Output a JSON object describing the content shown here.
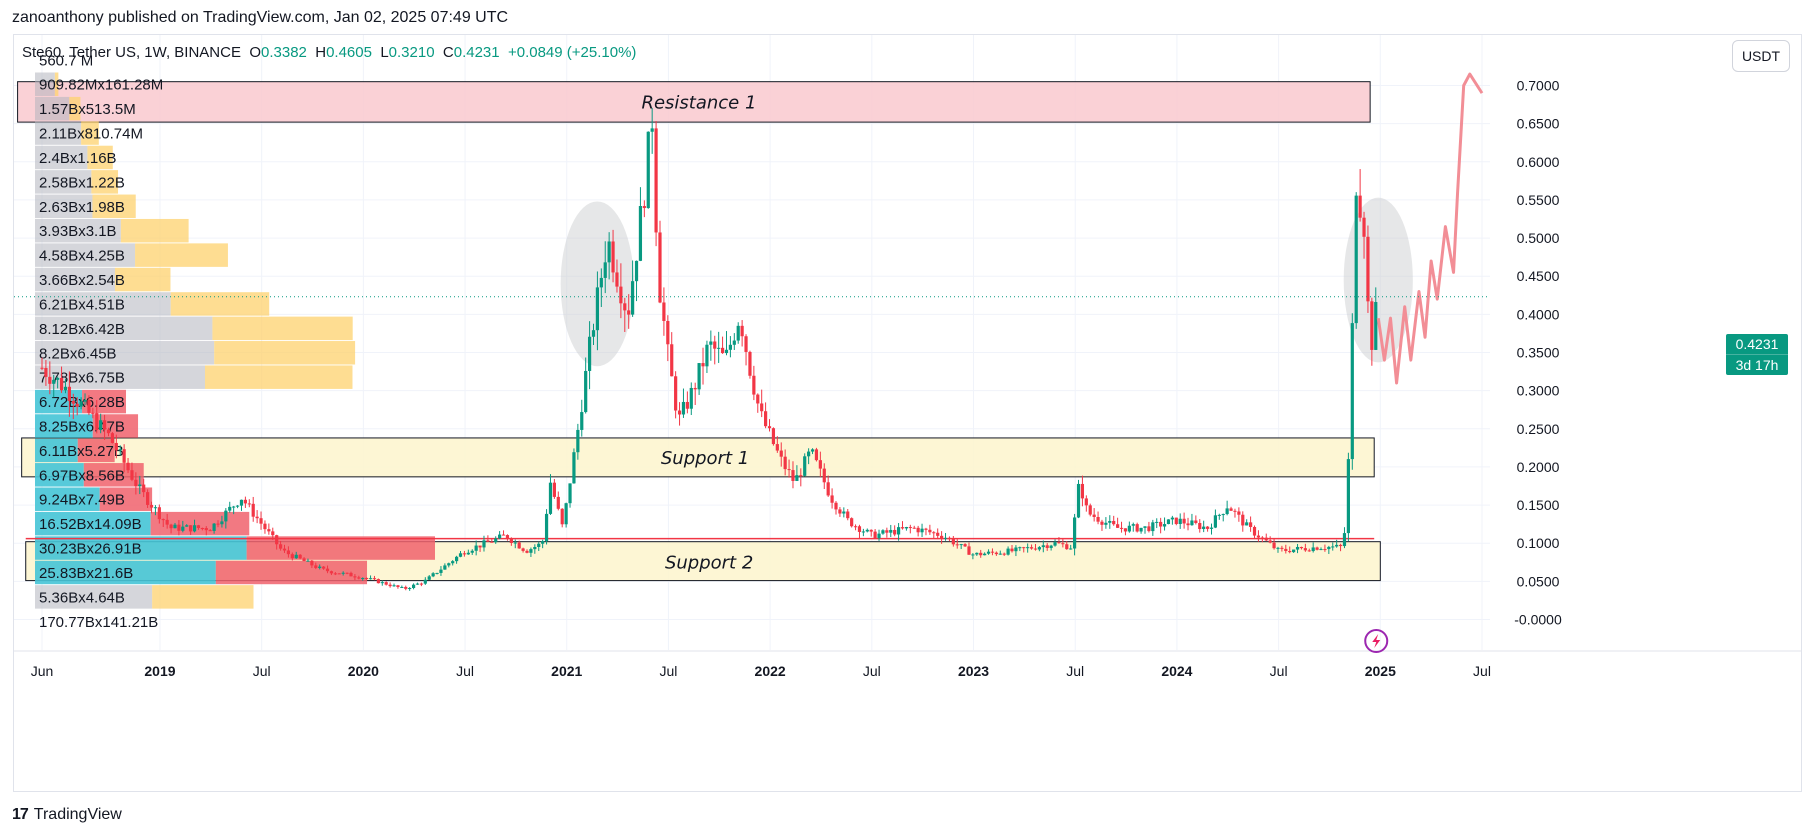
{
  "header": {
    "credit": "zanoanthony published on TradingView.com, Jan 02, 2025 07:49 UTC",
    "symbol_prefix": "Ste",
    "symbol_rest": "Ste60. Tether US, 1W, BINANCE",
    "o_label": "O",
    "o_value": "0.3382",
    "h_label": "H",
    "h_value": "0.4605",
    "l_label": "L",
    "l_value": "0.3210",
    "c_label": "C",
    "c_value": "0.4231",
    "change": "+0.0849 (+25.10%)"
  },
  "currency_button": "USDT",
  "last_price": {
    "value": "0.4231",
    "countdown": "3d 17h"
  },
  "footer": {
    "brand": "TradingView",
    "logo": "17"
  },
  "colors": {
    "up": "#089981",
    "down": "#f23645",
    "grid": "#f0f3fa",
    "resistance_fill": "#f9c9cf",
    "support_fill": "#fdf5cc",
    "vp_gray": "#b2b5be",
    "vp_yellow": "#fdd26e",
    "vp_cyan": "#45c4d6",
    "vp_red": "#f0616c",
    "projection": "#f28e96"
  },
  "icons": {
    "lightning": "lightning-icon"
  },
  "chart_data": {
    "type": "candlestick",
    "title": "Ste60 / Tether US, 1W, BINANCE",
    "ylabel": "USDT",
    "ylim": [
      -0.025,
      0.735
    ],
    "y_ticks": [
      "0.7000",
      "0.6500",
      "0.6000",
      "0.5500",
      "0.5000",
      "0.4500",
      "0.4000",
      "0.3500",
      "0.3000",
      "0.2500",
      "0.2000",
      "0.1500",
      "0.1000",
      "0.0500",
      "-0.0000"
    ],
    "x_ticks": [
      "Jun",
      "2019",
      "Jul",
      "2020",
      "Jul",
      "2021",
      "Jul",
      "2022",
      "Jul",
      "2023",
      "Jul",
      "2024",
      "Jul",
      "2025",
      "Jul"
    ],
    "x_tick_years": [
      2018.42,
      2019.0,
      2019.5,
      2020.0,
      2020.5,
      2021.0,
      2021.5,
      2022.0,
      2022.5,
      2023.0,
      2023.5,
      2024.0,
      2024.5,
      2025.0,
      2025.5
    ],
    "x_range": [
      2018.38,
      2025.55
    ],
    "zones": [
      {
        "name": "Resistance 1",
        "y_low": 0.652,
        "y_high": 0.705,
        "x_start": 2018.3,
        "x_end": 2024.95
      },
      {
        "name": "Support 1",
        "y_low": 0.187,
        "y_high": 0.238,
        "x_start": 2018.32,
        "x_end": 2024.97
      },
      {
        "name": "Support 2",
        "y_low": 0.051,
        "y_high": 0.102,
        "x_start": 2018.34,
        "x_end": 2025.0
      }
    ],
    "horizontal_line": {
      "y": 0.106,
      "x_start": 2018.34,
      "x_end": 2024.97
    },
    "highlight_ellipses": [
      {
        "center_x": 2021.15,
        "center_y": 0.44,
        "rx_years": 0.18,
        "ry": 0.108
      },
      {
        "center_x": 2024.99,
        "center_y": 0.445,
        "rx_years": 0.17,
        "ry": 0.108
      }
    ],
    "projection_path": [
      [
        2024.99,
        0.395
      ],
      [
        2025.02,
        0.34
      ],
      [
        2025.05,
        0.395
      ],
      [
        2025.08,
        0.31
      ],
      [
        2025.12,
        0.41
      ],
      [
        2025.15,
        0.34
      ],
      [
        2025.19,
        0.43
      ],
      [
        2025.22,
        0.37
      ],
      [
        2025.25,
        0.47
      ],
      [
        2025.28,
        0.42
      ],
      [
        2025.32,
        0.515
      ],
      [
        2025.36,
        0.455
      ],
      [
        2025.38,
        0.56
      ],
      [
        2025.41,
        0.7
      ],
      [
        2025.44,
        0.715
      ],
      [
        2025.5,
        0.69
      ]
    ],
    "weekly_close_keypoints": [
      [
        2018.42,
        0.33
      ],
      [
        2018.55,
        0.3
      ],
      [
        2018.75,
        0.24
      ],
      [
        2018.9,
        0.17
      ],
      [
        2019.05,
        0.12
      ],
      [
        2019.25,
        0.12
      ],
      [
        2019.4,
        0.16
      ],
      [
        2019.6,
        0.09
      ],
      [
        2019.8,
        0.065
      ],
      [
        2020.0,
        0.055
      ],
      [
        2020.2,
        0.04
      ],
      [
        2020.3,
        0.05
      ],
      [
        2020.5,
        0.09
      ],
      [
        2020.7,
        0.11
      ],
      [
        2020.8,
        0.09
      ],
      [
        2020.88,
        0.1
      ],
      [
        2020.92,
        0.18
      ],
      [
        2020.98,
        0.12
      ],
      [
        2021.05,
        0.24
      ],
      [
        2021.12,
        0.37
      ],
      [
        2021.2,
        0.5
      ],
      [
        2021.3,
        0.4
      ],
      [
        2021.38,
        0.56
      ],
      [
        2021.42,
        0.66
      ],
      [
        2021.45,
        0.45
      ],
      [
        2021.5,
        0.34
      ],
      [
        2021.55,
        0.26
      ],
      [
        2021.62,
        0.3
      ],
      [
        2021.7,
        0.36
      ],
      [
        2021.78,
        0.34
      ],
      [
        2021.85,
        0.4
      ],
      [
        2021.9,
        0.33
      ],
      [
        2021.95,
        0.27
      ],
      [
        2022.05,
        0.21
      ],
      [
        2022.12,
        0.18
      ],
      [
        2022.2,
        0.22
      ],
      [
        2022.3,
        0.16
      ],
      [
        2022.38,
        0.13
      ],
      [
        2022.5,
        0.11
      ],
      [
        2022.7,
        0.12
      ],
      [
        2022.85,
        0.11
      ],
      [
        2023.0,
        0.085
      ],
      [
        2023.2,
        0.09
      ],
      [
        2023.4,
        0.1
      ],
      [
        2023.48,
        0.095
      ],
      [
        2023.52,
        0.18
      ],
      [
        2023.56,
        0.14
      ],
      [
        2023.7,
        0.12
      ],
      [
        2023.85,
        0.12
      ],
      [
        2024.0,
        0.13
      ],
      [
        2024.15,
        0.12
      ],
      [
        2024.25,
        0.15
      ],
      [
        2024.35,
        0.12
      ],
      [
        2024.5,
        0.09
      ],
      [
        2024.7,
        0.095
      ],
      [
        2024.82,
        0.095
      ],
      [
        2024.85,
        0.24
      ],
      [
        2024.88,
        0.58
      ],
      [
        2024.92,
        0.52
      ],
      [
        2024.95,
        0.35
      ],
      [
        2024.99,
        0.4231
      ]
    ],
    "volume_profile": [
      {
        "price": 0.733,
        "label_a": "560.7",
        "label_b": "M",
        "gray": 0.0,
        "yellow": 0.0,
        "cyan": 0.0,
        "red": 0.0
      },
      {
        "price": 0.701,
        "label_a": "909.82",
        "label_b": "M",
        "label_c": "161.28",
        "label_d": "M",
        "gray": 0.909,
        "yellow": 0.161,
        "cyan": 0.0,
        "red": 0.0
      },
      {
        "price": 0.669,
        "label_a": "1.57",
        "label_b": "B",
        "label_c": "513.5",
        "label_d": "M",
        "gray": 1.57,
        "yellow": 0.51,
        "cyan": 0.0,
        "red": 0.0
      },
      {
        "price": 0.637,
        "label_a": "2.11",
        "label_b": "B",
        "label_c": "810.74",
        "label_d": "M",
        "gray": 2.11,
        "yellow": 0.81,
        "cyan": 0.0,
        "red": 0.0
      },
      {
        "price": 0.605,
        "label_a": "2.4",
        "label_b": "B",
        "label_c": "1.16",
        "label_d": "B",
        "gray": 2.4,
        "yellow": 1.16,
        "cyan": 0.0,
        "red": 0.0
      },
      {
        "price": 0.573,
        "label_a": "2.58",
        "label_b": "B",
        "label_c": "1.22",
        "label_d": "B",
        "gray": 2.58,
        "yellow": 1.22,
        "cyan": 0.0,
        "red": 0.0
      },
      {
        "price": 0.541,
        "label_a": "2.63",
        "label_b": "B",
        "label_c": "1.98",
        "label_d": "B",
        "gray": 2.63,
        "yellow": 1.98,
        "cyan": 0.0,
        "red": 0.0
      },
      {
        "price": 0.509,
        "label_a": "3.93",
        "label_b": "B",
        "label_c": "3.1",
        "label_d": "B",
        "gray": 3.93,
        "yellow": 3.1,
        "cyan": 0.0,
        "red": 0.0
      },
      {
        "price": 0.477,
        "label_a": "4.58",
        "label_b": "B",
        "label_c": "4.25",
        "label_d": "B",
        "gray": 4.58,
        "yellow": 4.25,
        "cyan": 0.0,
        "red": 0.0
      },
      {
        "price": 0.445,
        "label_a": "3.66",
        "label_b": "B",
        "label_c": "2.54",
        "label_d": "B",
        "gray": 3.66,
        "yellow": 2.54,
        "cyan": 0.0,
        "red": 0.0
      },
      {
        "price": 0.413,
        "label_a": "6.21",
        "label_b": "B",
        "label_c": "4.51",
        "label_d": "B",
        "gray": 6.21,
        "yellow": 4.51,
        "cyan": 0.0,
        "red": 0.0
      },
      {
        "price": 0.381,
        "label_a": "8.12",
        "label_b": "B",
        "label_c": "6.42",
        "label_d": "B",
        "gray": 8.12,
        "yellow": 6.42,
        "cyan": 0.0,
        "red": 0.0
      },
      {
        "price": 0.349,
        "label_a": "8.2",
        "label_b": "B",
        "label_c": "6.45",
        "label_d": "B",
        "gray": 8.2,
        "yellow": 6.45,
        "cyan": 0.0,
        "red": 0.0
      },
      {
        "price": 0.317,
        "label_a": "7.78",
        "label_b": "B",
        "label_c": "6.75",
        "label_d": "B",
        "gray": 7.78,
        "yellow": 6.75,
        "cyan": 0.0,
        "red": 0.0
      },
      {
        "price": 0.285,
        "label_a": "6.72",
        "label_b": "B",
        "label_c": "6.28",
        "label_d": "B",
        "gray": 0.0,
        "yellow": 0.0,
        "cyan": 6.72,
        "red": 6.28
      },
      {
        "price": 0.253,
        "label_a": "8.25",
        "label_b": "B",
        "label_c": "6.47",
        "label_d": "B",
        "gray": 0.0,
        "yellow": 0.0,
        "cyan": 8.25,
        "red": 6.47
      },
      {
        "price": 0.221,
        "label_a": "6.11",
        "label_b": "B",
        "label_c": "5.27",
        "label_d": "B",
        "gray": 0.0,
        "yellow": 0.0,
        "cyan": 6.11,
        "red": 5.27
      },
      {
        "price": 0.189,
        "label_a": "6.97",
        "label_b": "B",
        "label_c": "8.56",
        "label_d": "B",
        "gray": 0.0,
        "yellow": 0.0,
        "cyan": 6.97,
        "red": 8.56
      },
      {
        "price": 0.157,
        "label_a": "9.24",
        "label_b": "B",
        "label_c": "7.49",
        "label_d": "B",
        "gray": 0.0,
        "yellow": 0.0,
        "cyan": 9.24,
        "red": 7.49
      },
      {
        "price": 0.125,
        "label_a": "16.52",
        "label_b": "B",
        "label_c": "14.09",
        "label_d": "B",
        "gray": 0.0,
        "yellow": 0.0,
        "cyan": 16.52,
        "red": 14.09
      },
      {
        "price": 0.093,
        "label_a": "30.23",
        "label_b": "B",
        "label_c": "26.91",
        "label_d": "B",
        "gray": 0.0,
        "yellow": 0.0,
        "cyan": 30.23,
        "red": 26.91
      },
      {
        "price": 0.061,
        "label_a": "25.83",
        "label_b": "B",
        "label_c": "21.6",
        "label_d": "B",
        "gray": 0.0,
        "yellow": 0.0,
        "cyan": 25.83,
        "red": 21.6
      },
      {
        "price": 0.029,
        "label_a": "5.36",
        "label_b": "B",
        "label_c": "4.64",
        "label_d": "B",
        "gray": 5.36,
        "yellow": 4.64,
        "cyan": 0.0,
        "red": 0.0
      },
      {
        "price": -0.003,
        "label_a": "170.77",
        "label_b": "B",
        "label_c": "141.21",
        "label_d": "B",
        "gray": 0.0,
        "yellow": 0.0,
        "cyan": 0.0,
        "red": 0.0
      }
    ]
  }
}
